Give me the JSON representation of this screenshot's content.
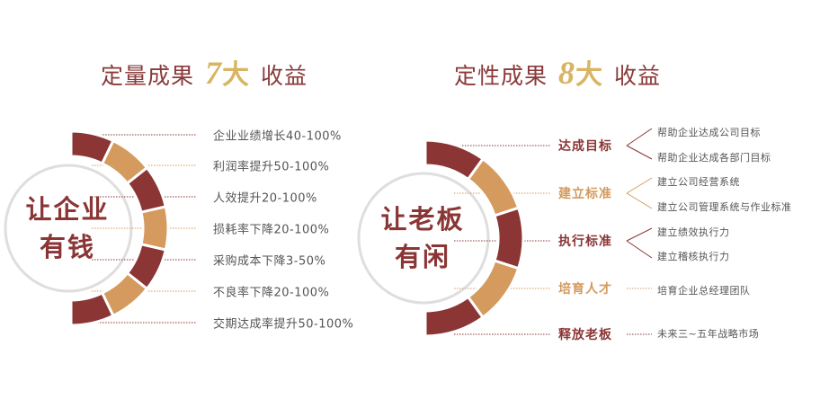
{
  "colors": {
    "dark": "#8b3535",
    "light": "#d49a5e",
    "ring": "#dedede"
  },
  "left": {
    "title_pre": "定量成果",
    "title_num": "7",
    "title_da": "大",
    "title_post": "收益",
    "center_line1": "让企业",
    "center_line2": "有钱",
    "items": [
      "企业业绩增长40-100%",
      "利润率提升50-100%",
      "人效提升20-100%",
      "损耗率下降20-100%",
      "采购成本下降3-50%",
      "不良率下降20-100%",
      "交期达成率提升50-100%"
    ]
  },
  "right": {
    "title_pre": "定性成果",
    "title_num": "8",
    "title_da": "大",
    "title_post": "收益",
    "center_line1": "让老板",
    "center_line2": "有闲",
    "groups": [
      {
        "heading": "达成目标",
        "subs": [
          "帮助企业达成公司目标",
          "帮助企业达成各部门目标"
        ]
      },
      {
        "heading": "建立标准",
        "subs": [
          "建立公司经营系统",
          "建立公司管理系统与作业标准"
        ]
      },
      {
        "heading": "执行标准",
        "subs": [
          "建立绩效执行力",
          "建立稽核执行力"
        ]
      },
      {
        "heading": "培育人才",
        "subs": [
          "培育企业总经理团队"
        ]
      },
      {
        "heading": "释放老板",
        "subs": [
          "未来三~五年战略市场"
        ]
      }
    ]
  }
}
